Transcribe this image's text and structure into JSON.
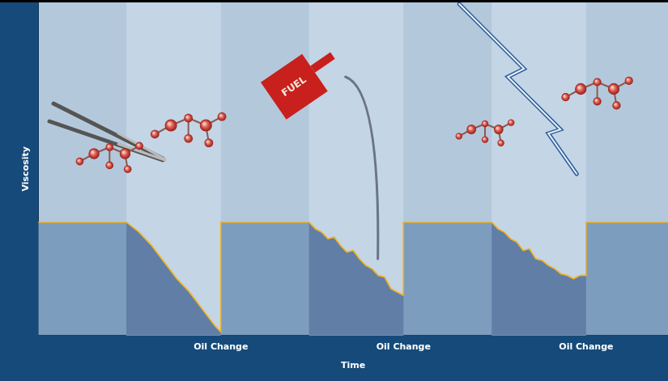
{
  "chart_data": {
    "type": "line",
    "x_label": "Time",
    "y_label": "Viscosity",
    "annotations": [
      "FUEL"
    ],
    "x": [
      0,
      14,
      16,
      18,
      20,
      22,
      24,
      26,
      28,
      29,
      29,
      43,
      44,
      45,
      46,
      47,
      48,
      49,
      50,
      51,
      52,
      53,
      54,
      55,
      56,
      57,
      58,
      58,
      72,
      73,
      74,
      75,
      76,
      77,
      78,
      79,
      80,
      81,
      82,
      83,
      84,
      85,
      86,
      87,
      87,
      100
    ],
    "values": [
      34,
      34,
      31,
      27,
      22,
      17,
      13,
      8,
      3,
      1,
      34,
      34,
      32,
      31,
      29,
      29.5,
      27,
      25,
      25.5,
      23,
      21,
      20,
      18,
      17.5,
      14,
      13,
      12,
      34,
      34,
      32,
      31,
      29,
      28,
      25.5,
      26,
      23,
      22.5,
      21,
      20,
      18.5,
      18,
      17,
      18,
      18,
      34,
      34
    ],
    "color": "#f0b429",
    "xlim": [
      0,
      100
    ],
    "xticks": [
      {
        "value": 29,
        "label": "Oil Change"
      },
      {
        "value": 58,
        "label": "Oil Change"
      },
      {
        "value": 87,
        "label": "Oil Change"
      }
    ],
    "ylim": [
      0,
      100
    ],
    "yticks": [],
    "grid": false,
    "tick_labels": "x"
  }
}
